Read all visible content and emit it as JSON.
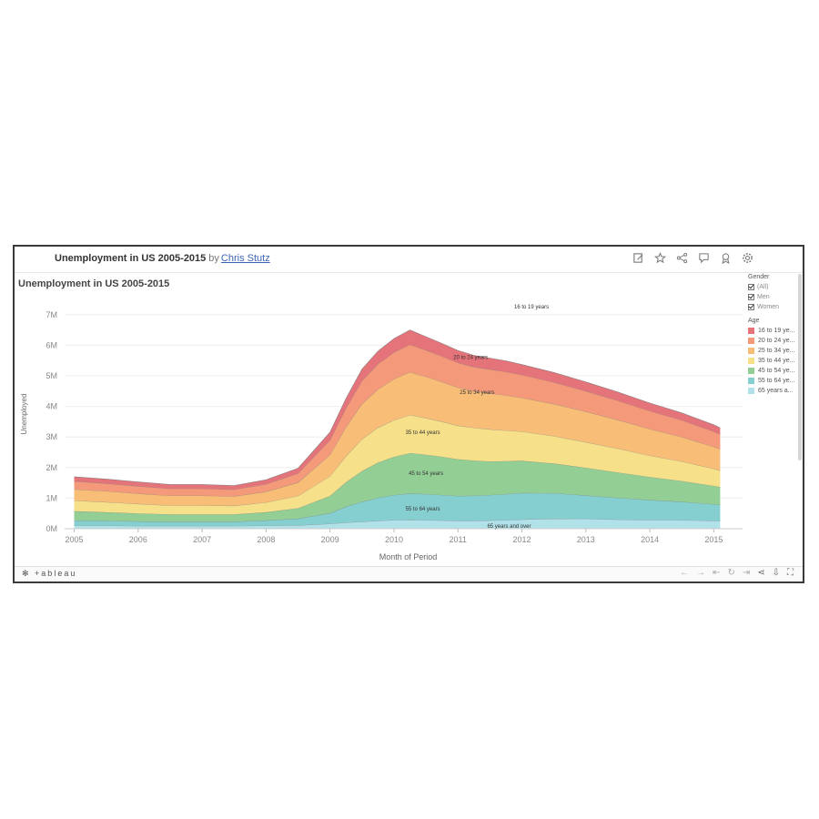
{
  "workbook": {
    "title": "Unemployment in US 2005-2015",
    "by": "by",
    "author": "Chris Stutz"
  },
  "toolbar_icons": [
    "edit-icon",
    "star-icon",
    "share-icon",
    "comment-icon",
    "badge-icon",
    "gear-icon"
  ],
  "sheet_title": "Unemployment in US 2005-2015",
  "filters": {
    "gender_label": "Gender",
    "gender_options": [
      "(All)",
      "Men",
      "Women"
    ],
    "age_label": "Age",
    "age_items": [
      {
        "label": "16 to 19 ye...",
        "color": "#e4737a"
      },
      {
        "label": "20 to 24 ye...",
        "color": "#f4997a"
      },
      {
        "label": "25 to 34 ye...",
        "color": "#f8bd77"
      },
      {
        "label": "35 to 44 ye...",
        "color": "#f7e08a"
      },
      {
        "label": "45 to 54 ye...",
        "color": "#93cf95"
      },
      {
        "label": "55 to 64 ye...",
        "color": "#86cfd0"
      },
      {
        "label": "65 years a...",
        "color": "#b1e2ea"
      }
    ]
  },
  "footer": {
    "logo": "+ableau"
  },
  "chart_data": {
    "type": "area",
    "stacked": true,
    "title": "Unemployment in US 2005-2015",
    "xlabel": "Month of Period",
    "ylabel": "Unemployed",
    "ylim": [
      0,
      7500000
    ],
    "yticks": [
      {
        "v": 0,
        "label": "0M"
      },
      {
        "v": 1000000,
        "label": "1M"
      },
      {
        "v": 2000000,
        "label": "2M"
      },
      {
        "v": 3000000,
        "label": "3M"
      },
      {
        "v": 4000000,
        "label": "4M"
      },
      {
        "v": 5000000,
        "label": "5M"
      },
      {
        "v": 6000000,
        "label": "6M"
      },
      {
        "v": 7000000,
        "label": "7M"
      }
    ],
    "xticks": [
      {
        "v": 2005,
        "label": "2005"
      },
      {
        "v": 2006,
        "label": "2006"
      },
      {
        "v": 2007,
        "label": "2007"
      },
      {
        "v": 2008,
        "label": "2008"
      },
      {
        "v": 2009,
        "label": "2009"
      },
      {
        "v": 2010,
        "label": "2010"
      },
      {
        "v": 2011,
        "label": "2011"
      },
      {
        "v": 2012,
        "label": "2012"
      },
      {
        "v": 2013,
        "label": "2013"
      },
      {
        "v": 2014,
        "label": "2014"
      },
      {
        "v": 2015,
        "label": "2015"
      }
    ],
    "xlim": [
      2004.85,
      2015.45
    ],
    "x": [
      2005.0,
      2005.5,
      2006.0,
      2006.5,
      2007.0,
      2007.5,
      2008.0,
      2008.5,
      2009.0,
      2009.25,
      2009.5,
      2009.75,
      2010.0,
      2010.25,
      2010.5,
      2010.75,
      2011.0,
      2011.25,
      2011.5,
      2011.75,
      2012.0,
      2012.5,
      2013.0,
      2013.5,
      2014.0,
      2014.5,
      2015.0,
      2015.1
    ],
    "series": [
      {
        "name": "65 years and over",
        "color": "#b1e2ea",
        "values": [
          100000,
          100000,
          90000,
          90000,
          90000,
          90000,
          100000,
          110000,
          160000,
          200000,
          230000,
          260000,
          280000,
          290000,
          280000,
          270000,
          260000,
          260000,
          270000,
          280000,
          300000,
          330000,
          320000,
          300000,
          290000,
          280000,
          260000,
          250000
        ]
      },
      {
        "name": "55 to 64 years",
        "color": "#86cfd0",
        "values": [
          170000,
          160000,
          150000,
          140000,
          140000,
          140000,
          170000,
          220000,
          350000,
          520000,
          650000,
          750000,
          820000,
          860000,
          850000,
          830000,
          810000,
          820000,
          830000,
          850000,
          870000,
          830000,
          770000,
          710000,
          650000,
          600000,
          540000,
          530000
        ]
      },
      {
        "name": "45 to 54 years",
        "color": "#93cf95",
        "values": [
          300000,
          280000,
          260000,
          240000,
          240000,
          240000,
          270000,
          340000,
          560000,
          800000,
          1000000,
          1150000,
          1250000,
          1320000,
          1290000,
          1250000,
          1200000,
          1150000,
          1100000,
          1080000,
          1050000,
          970000,
          900000,
          830000,
          750000,
          680000,
          600000,
          580000
        ]
      },
      {
        "name": "35 to 44 years",
        "color": "#f7e08a",
        "values": [
          350000,
          330000,
          310000,
          290000,
          290000,
          280000,
          320000,
          400000,
          650000,
          850000,
          1050000,
          1150000,
          1200000,
          1250000,
          1200000,
          1150000,
          1100000,
          1070000,
          1050000,
          1000000,
          960000,
          900000,
          840000,
          780000,
          700000,
          640000,
          560000,
          540000
        ]
      },
      {
        "name": "25 to 34 years",
        "color": "#f8bd77",
        "values": [
          370000,
          360000,
          340000,
          320000,
          320000,
          310000,
          350000,
          440000,
          700000,
          950000,
          1150000,
          1250000,
          1350000,
          1400000,
          1350000,
          1300000,
          1250000,
          1200000,
          1180000,
          1150000,
          1100000,
          1050000,
          1000000,
          940000,
          870000,
          800000,
          720000,
          700000
        ]
      },
      {
        "name": "20 to 24 years",
        "color": "#f4997a",
        "values": [
          260000,
          250000,
          240000,
          230000,
          230000,
          220000,
          250000,
          300000,
          480000,
          620000,
          760000,
          830000,
          870000,
          900000,
          870000,
          840000,
          810000,
          790000,
          780000,
          770000,
          750000,
          710000,
          670000,
          630000,
          590000,
          550000,
          500000,
          490000
        ]
      },
      {
        "name": "16 to 19 years",
        "color": "#e4737a",
        "values": [
          150000,
          145000,
          140000,
          135000,
          135000,
          130000,
          140000,
          170000,
          260000,
          320000,
          380000,
          420000,
          450000,
          480000,
          440000,
          420000,
          400000,
          380000,
          370000,
          360000,
          340000,
          320000,
          300000,
          280000,
          260000,
          240000,
          220000,
          210000
        ]
      }
    ],
    "annotations": [
      {
        "text": "16 to 19 years",
        "x": 2012.15,
        "y": 7200000
      },
      {
        "text": "20 to 24 years",
        "x": 2011.2,
        "y": 5550000
      },
      {
        "text": "25 to 34 years",
        "x": 2011.3,
        "y": 4400000
      },
      {
        "text": "35 to 44 years",
        "x": 2010.45,
        "y": 3100000
      },
      {
        "text": "45 to 54 years",
        "x": 2010.5,
        "y": 1750000
      },
      {
        "text": "55 to 64 years",
        "x": 2010.45,
        "y": 600000
      },
      {
        "text": "65 years and over",
        "x": 2011.8,
        "y": 30000
      }
    ]
  }
}
